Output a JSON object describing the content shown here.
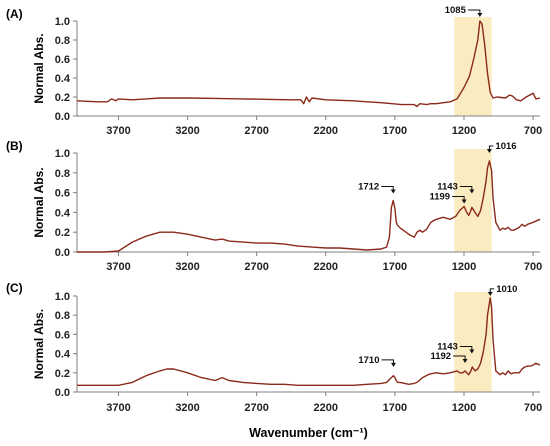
{
  "figure": {
    "xlabel": "Wavenumber (cm⁻¹)",
    "ylabel": "Normal Abs.",
    "colors": {
      "spectrum": "#8B2A1A",
      "highlight": "#FBEBC0",
      "axis": "#808080"
    }
  },
  "chart_data": [
    {
      "type": "line",
      "panel_label": "(A)",
      "x_ticks": [
        3700,
        3200,
        2700,
        2200,
        1700,
        1200,
        700
      ],
      "y_ticks": [
        "0.0",
        "0.2",
        "0.4",
        "0.6",
        "0.8",
        "1.0"
      ],
      "xlim": [
        4000,
        650
      ],
      "ylim": [
        0,
        1.0
      ],
      "x_reversed": true,
      "highlight_band": [
        1270,
        1000
      ],
      "annotations": [
        {
          "label": "1085",
          "x": 1085,
          "y": 1.0
        }
      ],
      "series": [
        {
          "x": [
            4000,
            3850,
            3780,
            3750,
            3720,
            3700,
            3600,
            3500,
            3400,
            3350,
            3200,
            3000,
            2800,
            2600,
            2450,
            2380,
            2360,
            2340,
            2320,
            2300,
            2200,
            2000,
            1900,
            1800,
            1720,
            1650,
            1560,
            1540,
            1520,
            1470,
            1440,
            1400,
            1350,
            1300,
            1250,
            1200,
            1160,
            1130,
            1100,
            1085,
            1070,
            1050,
            1030,
            1010,
            990,
            960,
            900,
            870,
            850,
            820,
            790,
            750,
            700,
            680,
            650
          ],
          "y": [
            0.16,
            0.15,
            0.15,
            0.18,
            0.16,
            0.18,
            0.17,
            0.18,
            0.19,
            0.19,
            0.19,
            0.185,
            0.18,
            0.175,
            0.17,
            0.17,
            0.13,
            0.2,
            0.15,
            0.19,
            0.17,
            0.16,
            0.15,
            0.14,
            0.13,
            0.12,
            0.12,
            0.1,
            0.13,
            0.12,
            0.13,
            0.13,
            0.14,
            0.15,
            0.18,
            0.3,
            0.42,
            0.6,
            0.8,
            1.0,
            0.97,
            0.75,
            0.45,
            0.25,
            0.19,
            0.2,
            0.19,
            0.22,
            0.21,
            0.17,
            0.16,
            0.2,
            0.24,
            0.18,
            0.19
          ]
        }
      ]
    },
    {
      "type": "line",
      "panel_label": "(B)",
      "x_ticks": [
        3700,
        3200,
        2700,
        2200,
        1700,
        1200,
        700
      ],
      "y_ticks": [
        "0.0",
        "0.2",
        "0.4",
        "0.6",
        "0.8",
        "1.0"
      ],
      "xlim": [
        4000,
        650
      ],
      "ylim": [
        0,
        1.0
      ],
      "x_reversed": true,
      "highlight_band": [
        1270,
        1000
      ],
      "annotations": [
        {
          "label": "1712",
          "x": 1712,
          "y": 0.55
        },
        {
          "label": "1199",
          "x": 1199,
          "y": 0.45
        },
        {
          "label": "1143",
          "x": 1143,
          "y": 0.55
        },
        {
          "label": "1016",
          "x": 1016,
          "y": 0.96
        }
      ],
      "series": [
        {
          "x": [
            4000,
            3800,
            3700,
            3600,
            3500,
            3400,
            3300,
            3200,
            3100,
            3000,
            2950,
            2900,
            2800,
            2700,
            2600,
            2500,
            2400,
            2300,
            2200,
            2100,
            2000,
            1900,
            1800,
            1760,
            1740,
            1725,
            1712,
            1700,
            1690,
            1680,
            1660,
            1640,
            1600,
            1560,
            1540,
            1520,
            1500,
            1470,
            1440,
            1400,
            1350,
            1300,
            1260,
            1230,
            1199,
            1180,
            1165,
            1150,
            1143,
            1120,
            1100,
            1080,
            1060,
            1040,
            1030,
            1016,
            1000,
            990,
            970,
            940,
            920,
            900,
            880,
            860,
            840,
            800,
            780,
            760,
            740,
            700,
            650
          ],
          "y": [
            0.0,
            0.0,
            0.01,
            0.1,
            0.16,
            0.2,
            0.2,
            0.18,
            0.15,
            0.12,
            0.13,
            0.11,
            0.1,
            0.09,
            0.09,
            0.08,
            0.06,
            0.05,
            0.04,
            0.04,
            0.03,
            0.02,
            0.03,
            0.05,
            0.15,
            0.45,
            0.52,
            0.44,
            0.3,
            0.27,
            0.24,
            0.22,
            0.18,
            0.15,
            0.2,
            0.22,
            0.2,
            0.23,
            0.3,
            0.33,
            0.35,
            0.33,
            0.36,
            0.42,
            0.46,
            0.4,
            0.37,
            0.42,
            0.45,
            0.4,
            0.36,
            0.42,
            0.55,
            0.72,
            0.85,
            0.92,
            0.82,
            0.55,
            0.3,
            0.22,
            0.24,
            0.23,
            0.25,
            0.22,
            0.22,
            0.25,
            0.28,
            0.26,
            0.28,
            0.3,
            0.33
          ]
        }
      ]
    },
    {
      "type": "line",
      "panel_label": "(C)",
      "x_ticks": [
        3700,
        3200,
        2700,
        2200,
        1700,
        1200,
        700
      ],
      "y_ticks": [
        "0.0",
        "0.2",
        "0.4",
        "0.6",
        "0.8",
        "1.0"
      ],
      "xlim": [
        4000,
        650
      ],
      "ylim": [
        0,
        1.0
      ],
      "x_reversed": true,
      "highlight_band": [
        1270,
        1000
      ],
      "annotations": [
        {
          "label": "1710",
          "x": 1710,
          "y": 0.22
        },
        {
          "label": "1192",
          "x": 1192,
          "y": 0.26
        },
        {
          "label": "1143",
          "x": 1143,
          "y": 0.36
        },
        {
          "label": "1010",
          "x": 1010,
          "y": 0.96
        }
      ],
      "series": [
        {
          "x": [
            4000,
            3800,
            3700,
            3600,
            3500,
            3400,
            3350,
            3300,
            3200,
            3100,
            3000,
            2950,
            2900,
            2800,
            2700,
            2600,
            2500,
            2400,
            2300,
            2200,
            2100,
            2000,
            1900,
            1800,
            1760,
            1740,
            1725,
            1710,
            1700,
            1690,
            1680,
            1660,
            1600,
            1560,
            1540,
            1500,
            1460,
            1440,
            1400,
            1350,
            1300,
            1250,
            1230,
            1210,
            1192,
            1180,
            1165,
            1150,
            1140,
            1120,
            1100,
            1080,
            1060,
            1040,
            1030,
            1010,
            1000,
            990,
            970,
            940,
            920,
            900,
            880,
            860,
            840,
            800,
            780,
            760,
            740,
            720,
            700,
            680,
            650
          ],
          "y": [
            0.07,
            0.07,
            0.07,
            0.1,
            0.17,
            0.22,
            0.24,
            0.24,
            0.2,
            0.15,
            0.12,
            0.15,
            0.12,
            0.1,
            0.09,
            0.08,
            0.08,
            0.07,
            0.07,
            0.07,
            0.07,
            0.07,
            0.08,
            0.09,
            0.1,
            0.13,
            0.15,
            0.17,
            0.15,
            0.12,
            0.1,
            0.1,
            0.08,
            0.09,
            0.1,
            0.15,
            0.18,
            0.19,
            0.2,
            0.19,
            0.2,
            0.22,
            0.2,
            0.2,
            0.22,
            0.2,
            0.18,
            0.22,
            0.26,
            0.22,
            0.24,
            0.3,
            0.42,
            0.6,
            0.8,
            0.98,
            0.88,
            0.55,
            0.22,
            0.18,
            0.2,
            0.18,
            0.22,
            0.19,
            0.2,
            0.2,
            0.24,
            0.26,
            0.27,
            0.27,
            0.28,
            0.3,
            0.28
          ]
        }
      ]
    }
  ]
}
